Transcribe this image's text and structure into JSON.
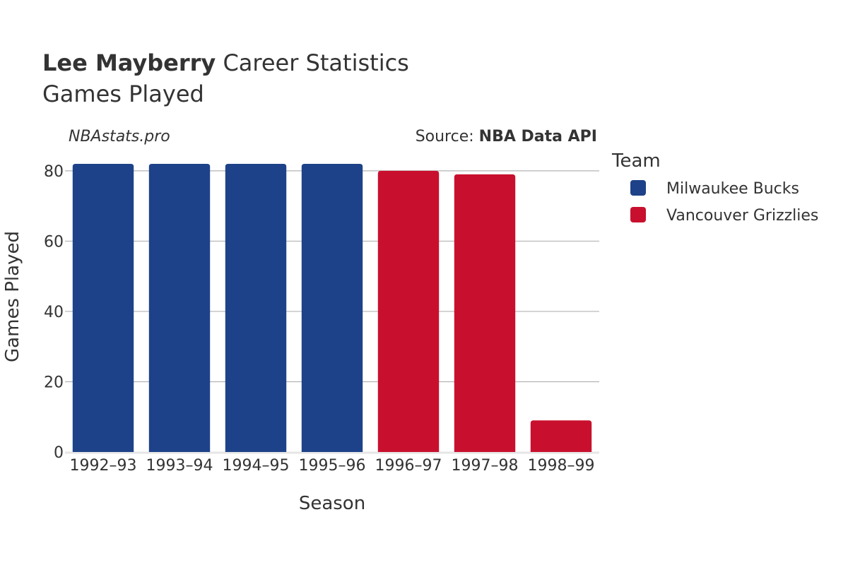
{
  "header": {
    "title_bold": "Lee Mayberry",
    "title_rest": " Career Statistics",
    "subtitle": "Games Played",
    "credit": "NBAstats.pro",
    "source_prefix": "Source: ",
    "source_bold": "NBA Data API"
  },
  "chart_data": {
    "type": "bar",
    "xlabel": "Season",
    "ylabel": "Games Played",
    "ylim": [
      0,
      84
    ],
    "yticks": [
      0,
      20,
      40,
      60,
      80
    ],
    "grid": true,
    "legend_placement": "right",
    "legend_title": "Team",
    "categories": [
      "1992–93",
      "1993–94",
      "1994–95",
      "1995–96",
      "1996–97",
      "1997–98",
      "1998–99"
    ],
    "values": [
      82,
      82,
      82,
      82,
      80,
      79,
      9
    ],
    "teams": [
      "Milwaukee Bucks",
      "Milwaukee Bucks",
      "Milwaukee Bucks",
      "Milwaukee Bucks",
      "Vancouver Grizzlies",
      "Vancouver Grizzlies",
      "Vancouver Grizzlies"
    ],
    "series": [
      {
        "name": "Milwaukee Bucks",
        "color": "#1d4289"
      },
      {
        "name": "Vancouver Grizzlies",
        "color": "#c8102e"
      }
    ]
  }
}
